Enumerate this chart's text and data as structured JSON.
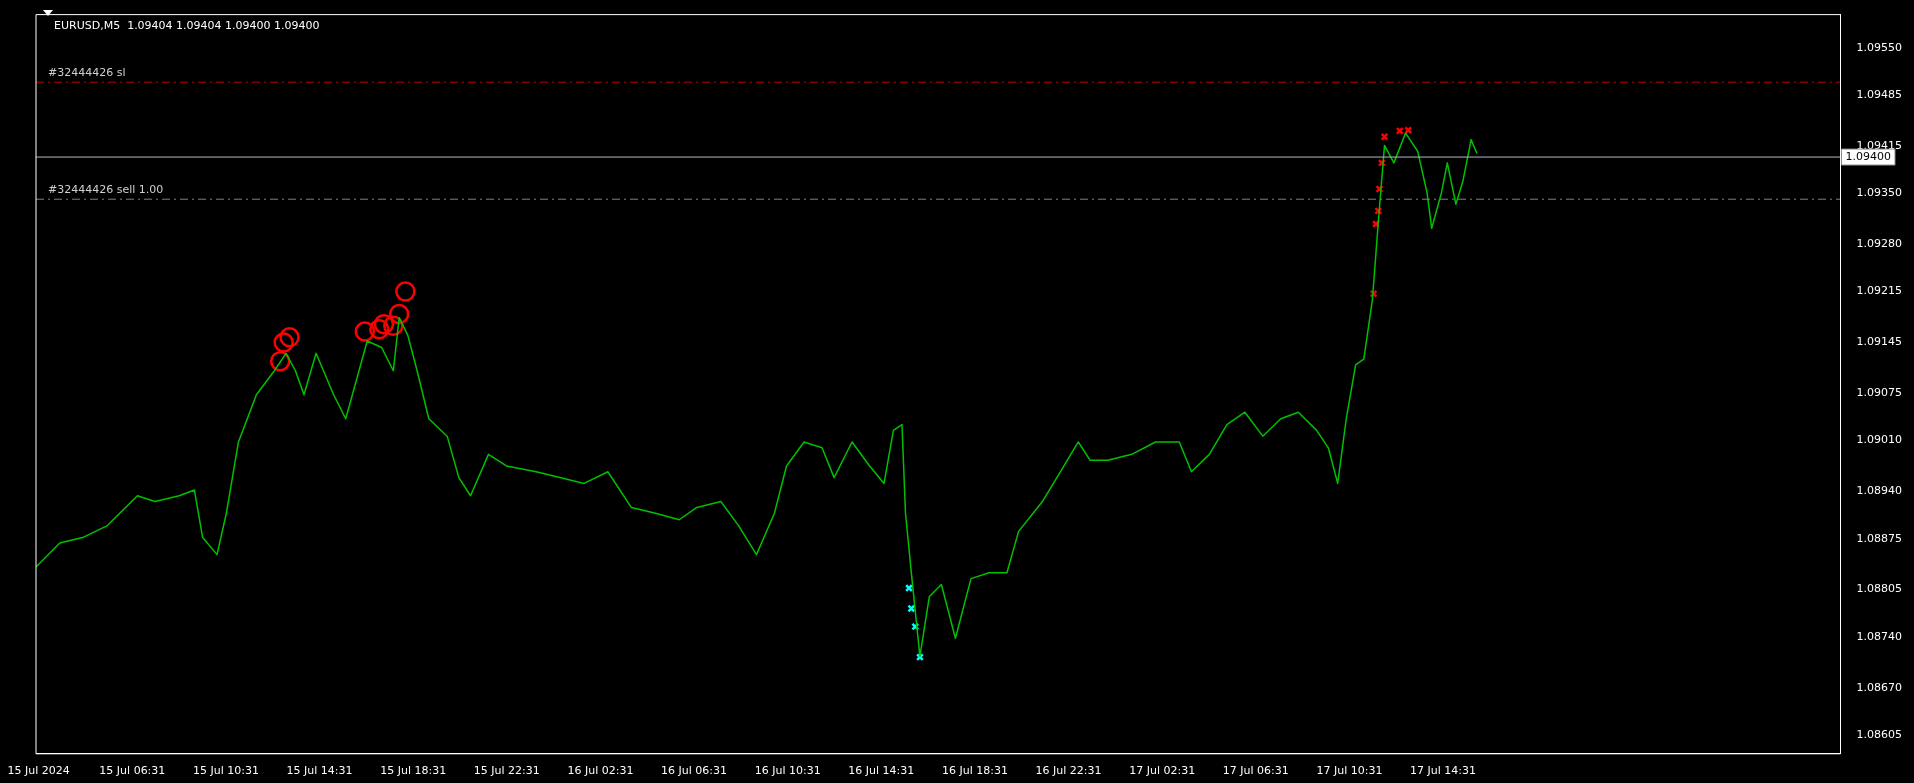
{
  "chart_data": {
    "type": "line",
    "title": "EURUSD,M5  1.09404 1.09404 1.09400 1.09400",
    "legend": false,
    "grid": false,
    "xlim": [
      "2024-07-15T02:24",
      "2024-07-18T07:30"
    ],
    "ylim": [
      1.08579,
      1.09596
    ],
    "xticks": [
      {
        "value": "2024-07-15T02:31",
        "label": "15 Jul 2024"
      },
      {
        "value": "2024-07-15T06:31",
        "label": "15 Jul 06:31"
      },
      {
        "value": "2024-07-15T10:31",
        "label": "15 Jul 10:31"
      },
      {
        "value": "2024-07-15T14:31",
        "label": "15 Jul 14:31"
      },
      {
        "value": "2024-07-15T18:31",
        "label": "15 Jul 18:31"
      },
      {
        "value": "2024-07-15T22:31",
        "label": "15 Jul 22:31"
      },
      {
        "value": "2024-07-16T02:31",
        "label": "16 Jul 02:31"
      },
      {
        "value": "2024-07-16T06:31",
        "label": "16 Jul 06:31"
      },
      {
        "value": "2024-07-16T10:31",
        "label": "16 Jul 10:31"
      },
      {
        "value": "2024-07-16T14:31",
        "label": "16 Jul 14:31"
      },
      {
        "value": "2024-07-16T18:31",
        "label": "16 Jul 18:31"
      },
      {
        "value": "2024-07-16T22:31",
        "label": "16 Jul 22:31"
      },
      {
        "value": "2024-07-17T02:31",
        "label": "17 Jul 02:31"
      },
      {
        "value": "2024-07-17T06:31",
        "label": "17 Jul 06:31"
      },
      {
        "value": "2024-07-17T10:31",
        "label": "17 Jul 10:31"
      },
      {
        "value": "2024-07-17T14:31",
        "label": "17 Jul 14:31"
      }
    ],
    "yticks": [
      {
        "value": 1.0955,
        "label": "1.09550"
      },
      {
        "value": 1.09485,
        "label": "1.09485"
      },
      {
        "value": 1.09415,
        "label": "1.09415"
      },
      {
        "value": 1.0935,
        "label": "1.09350"
      },
      {
        "value": 1.0928,
        "label": "1.09280"
      },
      {
        "value": 1.09215,
        "label": "1.09215"
      },
      {
        "value": 1.09145,
        "label": "1.09145"
      },
      {
        "value": 1.09075,
        "label": "1.09075"
      },
      {
        "value": 1.0901,
        "label": "1.09010"
      },
      {
        "value": 1.0894,
        "label": "1.08940"
      },
      {
        "value": 1.08875,
        "label": "1.08875"
      },
      {
        "value": 1.08805,
        "label": "1.08805"
      },
      {
        "value": 1.0874,
        "label": "1.08740"
      },
      {
        "value": 1.0867,
        "label": "1.08670"
      },
      {
        "value": 1.08605,
        "label": "1.08605"
      }
    ],
    "ref_lines": [
      {
        "axis": "y",
        "value": 1.09503,
        "label": "#32444426 sl",
        "color": "#c00000",
        "line_style": "dashed"
      },
      {
        "axis": "y",
        "value": 1.09342,
        "label": "#32444426 sell 1.00",
        "color": "#808080",
        "line_style": "dashed"
      },
      {
        "axis": "y",
        "value": 1.094,
        "label": "1.09400",
        "color": "#b0b8c8",
        "line_style": "solid"
      }
    ],
    "series": [
      {
        "color": "#00c000",
        "marker": "none",
        "x": [
          "2024-07-15T02:24",
          "2024-07-15T03:25",
          "2024-07-15T04:26",
          "2024-07-15T05:27",
          "2024-07-15T06:44",
          "2024-07-15T07:29",
          "2024-07-15T08:31",
          "2024-07-15T09:10",
          "2024-07-15T09:31",
          "2024-07-15T10:08",
          "2024-07-15T10:32",
          "2024-07-15T11:03",
          "2024-07-15T11:49",
          "2024-07-15T12:35",
          "2024-07-15T13:05",
          "2024-07-15T13:29",
          "2024-07-15T13:51",
          "2024-07-15T14:22",
          "2024-07-15T15:07",
          "2024-07-15T15:38",
          "2024-07-15T16:08",
          "2024-07-15T16:33",
          "2024-07-15T17:10",
          "2024-07-15T17:40",
          "2024-07-15T17:55",
          "2024-07-15T18:17",
          "2024-07-15T18:41",
          "2024-07-15T19:11",
          "2024-07-15T19:58",
          "2024-07-15T20:28",
          "2024-07-15T20:58",
          "2024-07-15T21:44",
          "2024-07-15T22:30",
          "2024-07-15T23:46",
          "2024-07-16T00:47",
          "2024-07-16T01:49",
          "2024-07-16T02:50",
          "2024-07-16T03:50",
          "2024-07-16T04:52",
          "2024-07-16T05:53",
          "2024-07-16T06:38",
          "2024-07-16T07:40",
          "2024-07-16T08:25",
          "2024-07-16T09:11",
          "2024-07-16T09:57",
          "2024-07-16T10:28",
          "2024-07-16T11:13",
          "2024-07-16T11:59",
          "2024-07-16T12:30",
          "2024-07-16T13:16",
          "2024-07-16T14:01",
          "2024-07-16T14:38",
          "2024-07-16T15:02",
          "2024-07-16T15:24",
          "2024-07-16T15:33",
          "2024-07-16T15:48",
          "2024-07-16T16:10",
          "2024-07-16T16:34",
          "2024-07-16T17:05",
          "2024-07-16T17:41",
          "2024-07-16T18:21",
          "2024-07-16T19:07",
          "2024-07-16T19:53",
          "2024-07-16T20:23",
          "2024-07-16T21:24",
          "2024-07-16T22:10",
          "2024-07-16T22:56",
          "2024-07-16T23:26",
          "2024-07-17T00:12",
          "2024-07-17T01:13",
          "2024-07-17T02:14",
          "2024-07-17T03:15",
          "2024-07-17T03:46",
          "2024-07-17T04:32",
          "2024-07-17T05:17",
          "2024-07-17T06:03",
          "2024-07-17T06:49",
          "2024-07-17T07:35",
          "2024-07-17T08:20",
          "2024-07-17T09:07",
          "2024-07-17T09:37",
          "2024-07-17T10:01",
          "2024-07-17T10:23",
          "2024-07-17T10:47",
          "2024-07-17T11:08",
          "2024-07-17T11:30",
          "2024-07-17T11:45",
          "2024-07-17T12:01",
          "2024-07-17T12:25",
          "2024-07-17T12:55",
          "2024-07-17T13:26",
          "2024-07-17T13:50",
          "2024-07-17T14:02",
          "2024-07-17T14:27",
          "2024-07-17T14:42",
          "2024-07-17T15:04",
          "2024-07-17T15:22",
          "2024-07-17T15:43",
          "2024-07-17T15:58"
        ],
        "values": [
          1.08836,
          1.08869,
          1.08877,
          1.08893,
          1.08934,
          1.08926,
          1.08934,
          1.08942,
          1.08877,
          1.08853,
          1.0891,
          1.09008,
          1.09073,
          1.09106,
          1.0913,
          1.09106,
          1.09073,
          1.0913,
          1.09073,
          1.0904,
          1.09098,
          1.09147,
          1.09138,
          1.09106,
          1.09179,
          1.09155,
          1.09106,
          1.0904,
          1.09016,
          1.08959,
          1.08934,
          1.08991,
          1.08975,
          1.08967,
          1.08959,
          1.08951,
          1.08967,
          1.08918,
          1.0891,
          1.08901,
          1.08918,
          1.08926,
          1.08893,
          1.08853,
          1.0891,
          1.08975,
          1.09008,
          1.09,
          1.08959,
          1.09008,
          1.08975,
          1.08951,
          1.09024,
          1.09032,
          1.0891,
          1.08828,
          1.08713,
          1.08795,
          1.08812,
          1.08738,
          1.0882,
          1.08828,
          1.08828,
          1.08885,
          1.08926,
          1.08967,
          1.09008,
          1.08983,
          1.08983,
          1.08991,
          1.09008,
          1.09008,
          1.08967,
          1.08991,
          1.09032,
          1.09049,
          1.09016,
          1.0904,
          1.09049,
          1.09024,
          1.09,
          1.08951,
          1.0904,
          1.09114,
          1.09122,
          1.09204,
          1.0931,
          1.09416,
          1.09392,
          1.09433,
          1.09408,
          1.09351,
          1.09302,
          1.09351,
          1.09392,
          1.09335,
          1.09367,
          1.09424,
          1.09405
        ]
      },
      {
        "type": "scatter",
        "color": "#ff0000",
        "marker": "circle",
        "x": [
          "2024-07-15T12:50",
          "2024-07-15T12:59",
          "2024-07-15T13:14",
          "2024-07-15T16:27",
          "2024-07-15T17:04",
          "2024-07-15T17:16",
          "2024-07-15T17:40",
          "2024-07-15T17:55",
          "2024-07-15T18:11"
        ],
        "values": [
          1.09119,
          1.09145,
          1.09152,
          1.0916,
          1.09163,
          1.0917,
          1.09168,
          1.09184,
          1.09215
        ]
      },
      {
        "type": "scatter",
        "color": "#00ffff",
        "marker": "cross",
        "x": [
          "2024-07-16T15:42",
          "2024-07-16T15:48",
          "2024-07-16T15:58",
          "2024-07-16T16:10"
        ],
        "values": [
          1.08807,
          1.08779,
          1.08754,
          1.08712
        ]
      },
      {
        "type": "scatter",
        "color": "#ff0000",
        "marker": "cross",
        "x": [
          "2024-07-17T11:33",
          "2024-07-17T11:39",
          "2024-07-17T11:45",
          "2024-07-17T11:48",
          "2024-07-17T11:54",
          "2024-07-17T12:01",
          "2024-07-17T12:40",
          "2024-07-17T13:02"
        ],
        "values": [
          1.09212,
          1.09308,
          1.09326,
          1.09356,
          1.09392,
          1.09428,
          1.09436,
          1.09437
        ]
      }
    ]
  }
}
